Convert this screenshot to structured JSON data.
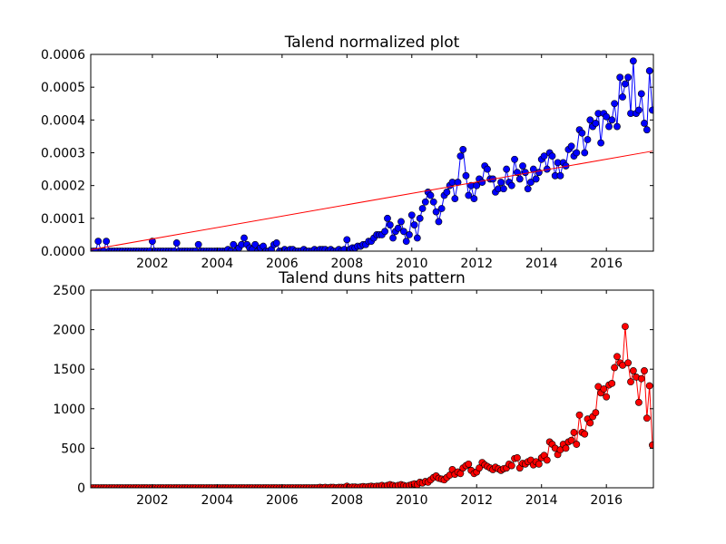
{
  "chart_data": [
    {
      "type": "line",
      "title": "Talend normalized plot",
      "xlim": [
        2000.1,
        2017.45
      ],
      "ylim": [
        0,
        0.0006
      ],
      "xticks": [
        2002,
        2004,
        2006,
        2008,
        2010,
        2012,
        2014,
        2016
      ],
      "yticks": [
        {
          "value": 0,
          "label": "0.0000"
        },
        {
          "value": 0.0001,
          "label": "0.0001"
        },
        {
          "value": 0.0002,
          "label": "0.0002"
        },
        {
          "value": 0.0003,
          "label": "0.0003"
        },
        {
          "value": 0.0004,
          "label": "0.0004"
        },
        {
          "value": 0.0005,
          "label": "0.0005"
        },
        {
          "value": 0.0006,
          "label": "0.0006"
        }
      ],
      "x": [
        2000.08,
        2000.17,
        2000.25,
        2000.33,
        2000.42,
        2000.5,
        2000.58,
        2000.67,
        2000.75,
        2000.83,
        2000.92,
        2001,
        2001.08,
        2001.17,
        2001.25,
        2001.33,
        2001.42,
        2001.5,
        2001.58,
        2001.67,
        2001.75,
        2001.83,
        2001.92,
        2002,
        2002.08,
        2002.17,
        2002.25,
        2002.33,
        2002.42,
        2002.5,
        2002.58,
        2002.67,
        2002.75,
        2002.83,
        2002.92,
        2003,
        2003.08,
        2003.17,
        2003.25,
        2003.33,
        2003.42,
        2003.5,
        2003.58,
        2003.67,
        2003.75,
        2003.83,
        2003.92,
        2004,
        2004.08,
        2004.17,
        2004.25,
        2004.33,
        2004.42,
        2004.5,
        2004.58,
        2004.67,
        2004.75,
        2004.83,
        2004.92,
        2005,
        2005.08,
        2005.17,
        2005.25,
        2005.33,
        2005.42,
        2005.5,
        2005.58,
        2005.67,
        2005.75,
        2005.83,
        2005.92,
        2006,
        2006.08,
        2006.17,
        2006.25,
        2006.33,
        2006.42,
        2006.5,
        2006.58,
        2006.67,
        2006.75,
        2006.83,
        2006.92,
        2007,
        2007.08,
        2007.17,
        2007.25,
        2007.33,
        2007.42,
        2007.5,
        2007.58,
        2007.67,
        2007.75,
        2007.83,
        2007.92,
        2008,
        2008.08,
        2008.17,
        2008.25,
        2008.33,
        2008.42,
        2008.5,
        2008.58,
        2008.67,
        2008.75,
        2008.83,
        2008.92,
        2009,
        2009.08,
        2009.17,
        2009.25,
        2009.33,
        2009.42,
        2009.5,
        2009.58,
        2009.67,
        2009.75,
        2009.83,
        2009.92,
        2010,
        2010.08,
        2010.17,
        2010.25,
        2010.33,
        2010.42,
        2010.5,
        2010.58,
        2010.67,
        2010.75,
        2010.83,
        2010.92,
        2011,
        2011.08,
        2011.17,
        2011.25,
        2011.33,
        2011.42,
        2011.5,
        2011.58,
        2011.67,
        2011.75,
        2011.83,
        2011.92,
        2012,
        2012.08,
        2012.17,
        2012.25,
        2012.33,
        2012.42,
        2012.5,
        2012.58,
        2012.67,
        2012.75,
        2012.83,
        2012.92,
        2013,
        2013.08,
        2013.17,
        2013.25,
        2013.33,
        2013.42,
        2013.5,
        2013.58,
        2013.67,
        2013.75,
        2013.83,
        2013.92,
        2014,
        2014.08,
        2014.17,
        2014.25,
        2014.33,
        2014.42,
        2014.5,
        2014.58,
        2014.67,
        2014.75,
        2014.83,
        2014.92,
        2015,
        2015.08,
        2015.17,
        2015.25,
        2015.33,
        2015.42,
        2015.5,
        2015.58,
        2015.67,
        2015.75,
        2015.83,
        2015.92,
        2016,
        2016.08,
        2016.17,
        2016.25,
        2016.33,
        2016.42,
        2016.5,
        2016.58,
        2016.67,
        2016.75,
        2016.83,
        2016.92,
        2017,
        2017.08,
        2017.17,
        2017.25,
        2017.33,
        2017.42
      ],
      "series": [
        {
          "color": "#0000ff",
          "markers": true,
          "values": [
            0,
            0,
            0,
            3e-05,
            0,
            0,
            3e-05,
            0,
            0,
            0,
            0,
            0,
            0,
            0,
            0,
            0,
            0,
            0,
            0,
            0,
            0,
            0,
            0,
            3e-05,
            0,
            0,
            0,
            0,
            0,
            0,
            0,
            0,
            2.5e-05,
            0,
            0,
            0,
            0,
            0,
            0,
            0,
            2e-05,
            0,
            0,
            0,
            0,
            0,
            0,
            0,
            0,
            0,
            0,
            5e-06,
            0,
            2e-05,
            0,
            1e-05,
            2e-05,
            4e-05,
            2e-05,
            1e-05,
            5e-06,
            2e-05,
            0,
            1e-05,
            1.5e-05,
            0,
            0,
            5e-06,
            2e-05,
            2.5e-05,
            0,
            0,
            5e-06,
            0,
            5e-06,
            5e-06,
            0,
            0,
            0,
            5e-06,
            0,
            0,
            0,
            5e-06,
            0,
            5e-06,
            5e-06,
            5e-06,
            0,
            5e-06,
            0,
            0,
            5e-06,
            0,
            5e-06,
            3.5e-05,
            5e-06,
            1e-05,
            1e-05,
            1.5e-05,
            1.5e-05,
            2e-05,
            2e-05,
            3e-05,
            3e-05,
            4e-05,
            5e-05,
            5e-05,
            5e-05,
            6e-05,
            0.0001,
            8e-05,
            4e-05,
            6e-05,
            7e-05,
            9e-05,
            6e-05,
            3e-05,
            5e-05,
            0.00011,
            8e-05,
            4e-05,
            0.0001,
            0.00013,
            0.00015,
            0.00018,
            0.00017,
            0.00015,
            0.00012,
            9e-05,
            0.00013,
            0.00017,
            0.00018,
            0.0002,
            0.00021,
            0.00016,
            0.00021,
            0.00029,
            0.00031,
            0.00023,
            0.00017,
            0.0002,
            0.00016,
            0.0002,
            0.00022,
            0.00021,
            0.00026,
            0.00025,
            0.00022,
            0.00022,
            0.00018,
            0.00019,
            0.00021,
            0.00019,
            0.00025,
            0.00021,
            0.0002,
            0.00028,
            0.00024,
            0.00022,
            0.00026,
            0.00024,
            0.00019,
            0.00021,
            0.00025,
            0.00022,
            0.00024,
            0.00028,
            0.00029,
            0.00025,
            0.0003,
            0.00029,
            0.00023,
            0.00027,
            0.00023,
            0.00027,
            0.00026,
            0.00031,
            0.00032,
            0.00029,
            0.0003,
            0.00037,
            0.00036,
            0.0003,
            0.00034,
            0.0004,
            0.00038,
            0.00039,
            0.00042,
            0.00033,
            0.00042,
            0.00041,
            0.00038,
            0.0004,
            0.00045,
            0.00038,
            0.00053,
            0.00047,
            0.00051,
            0.00053,
            0.00042,
            0.00058,
            0.00042,
            0.00043,
            0.00048,
            0.00039,
            0.00037,
            0.00055,
            0.00043
          ]
        },
        {
          "color": "#ff0000",
          "markers": false,
          "x": [
            2000.08,
            2017.42
          ],
          "values": [
            4e-06,
            0.000305
          ]
        }
      ]
    },
    {
      "type": "line",
      "title": "Talend duns hits pattern",
      "xlim": [
        2000.1,
        2017.45
      ],
      "ylim": [
        0,
        2500
      ],
      "xticks": [
        2002,
        2004,
        2006,
        2008,
        2010,
        2012,
        2014,
        2016
      ],
      "yticks": [
        0,
        500,
        1000,
        1500,
        2000,
        2500
      ],
      "x": [
        2000.08,
        2000.17,
        2000.25,
        2000.33,
        2000.42,
        2000.5,
        2000.58,
        2000.67,
        2000.75,
        2000.83,
        2000.92,
        2001,
        2001.08,
        2001.17,
        2001.25,
        2001.33,
        2001.42,
        2001.5,
        2001.58,
        2001.67,
        2001.75,
        2001.83,
        2001.92,
        2002,
        2002.08,
        2002.17,
        2002.25,
        2002.33,
        2002.42,
        2002.5,
        2002.58,
        2002.67,
        2002.75,
        2002.83,
        2002.92,
        2003,
        2003.08,
        2003.17,
        2003.25,
        2003.33,
        2003.42,
        2003.5,
        2003.58,
        2003.67,
        2003.75,
        2003.83,
        2003.92,
        2004,
        2004.08,
        2004.17,
        2004.25,
        2004.33,
        2004.42,
        2004.5,
        2004.58,
        2004.67,
        2004.75,
        2004.83,
        2004.92,
        2005,
        2005.08,
        2005.17,
        2005.25,
        2005.33,
        2005.42,
        2005.5,
        2005.58,
        2005.67,
        2005.75,
        2005.83,
        2005.92,
        2006,
        2006.08,
        2006.17,
        2006.25,
        2006.33,
        2006.42,
        2006.5,
        2006.58,
        2006.67,
        2006.75,
        2006.83,
        2006.92,
        2007,
        2007.08,
        2007.17,
        2007.25,
        2007.33,
        2007.42,
        2007.5,
        2007.58,
        2007.67,
        2007.75,
        2007.83,
        2007.92,
        2008,
        2008.08,
        2008.17,
        2008.25,
        2008.33,
        2008.42,
        2008.5,
        2008.58,
        2008.67,
        2008.75,
        2008.83,
        2008.92,
        2009,
        2009.08,
        2009.17,
        2009.25,
        2009.33,
        2009.42,
        2009.5,
        2009.58,
        2009.67,
        2009.75,
        2009.83,
        2009.92,
        2010,
        2010.08,
        2010.17,
        2010.25,
        2010.33,
        2010.42,
        2010.5,
        2010.58,
        2010.67,
        2010.75,
        2010.83,
        2010.92,
        2011,
        2011.08,
        2011.17,
        2011.25,
        2011.33,
        2011.42,
        2011.5,
        2011.58,
        2011.67,
        2011.75,
        2011.83,
        2011.92,
        2012,
        2012.08,
        2012.17,
        2012.25,
        2012.33,
        2012.42,
        2012.5,
        2012.58,
        2012.67,
        2012.75,
        2012.83,
        2012.92,
        2013,
        2013.08,
        2013.17,
        2013.25,
        2013.33,
        2013.42,
        2013.5,
        2013.58,
        2013.67,
        2013.75,
        2013.83,
        2013.92,
        2014,
        2014.08,
        2014.17,
        2014.25,
        2014.33,
        2014.42,
        2014.5,
        2014.58,
        2014.67,
        2014.75,
        2014.83,
        2014.92,
        2015,
        2015.08,
        2015.17,
        2015.25,
        2015.33,
        2015.42,
        2015.5,
        2015.58,
        2015.67,
        2015.75,
        2015.83,
        2015.92,
        2016,
        2016.08,
        2016.17,
        2016.25,
        2016.33,
        2016.42,
        2016.5,
        2016.58,
        2016.67,
        2016.75,
        2016.83,
        2016.92,
        2017,
        2017.08,
        2017.17,
        2017.25,
        2017.33,
        2017.42
      ],
      "series": [
        {
          "color": "#ff0000",
          "markers": true,
          "values": [
            0,
            0,
            0,
            0,
            0,
            0,
            0,
            0,
            0,
            0,
            0,
            0,
            0,
            0,
            0,
            0,
            0,
            0,
            0,
            0,
            0,
            0,
            0,
            0,
            0,
            0,
            0,
            0,
            0,
            0,
            0,
            0,
            0,
            0,
            0,
            0,
            0,
            0,
            0,
            0,
            0,
            0,
            0,
            0,
            0,
            0,
            0,
            0,
            0,
            0,
            0,
            0,
            0,
            0,
            0,
            0,
            0,
            0,
            0,
            0,
            0,
            0,
            0,
            0,
            0,
            0,
            0,
            0,
            0,
            0,
            0,
            0,
            0,
            0,
            0,
            0,
            0,
            0,
            0,
            0,
            0,
            0,
            0,
            0,
            0,
            5,
            0,
            5,
            0,
            5,
            5,
            0,
            5,
            5,
            5,
            20,
            5,
            10,
            10,
            5,
            10,
            15,
            10,
            15,
            20,
            15,
            20,
            20,
            30,
            20,
            30,
            40,
            30,
            20,
            30,
            40,
            30,
            20,
            30,
            40,
            50,
            40,
            70,
            60,
            80,
            70,
            100,
            130,
            150,
            120,
            110,
            100,
            130,
            160,
            230,
            170,
            200,
            180,
            250,
            280,
            300,
            220,
            180,
            200,
            250,
            320,
            290,
            270,
            250,
            230,
            260,
            240,
            220,
            240,
            250,
            300,
            280,
            370,
            380,
            250,
            310,
            300,
            330,
            350,
            290,
            330,
            300,
            380,
            410,
            350,
            580,
            550,
            500,
            420,
            480,
            550,
            500,
            580,
            600,
            700,
            550,
            920,
            700,
            680,
            870,
            820,
            900,
            950,
            1280,
            1200,
            1250,
            1150,
            1300,
            1320,
            1520,
            1660,
            1580,
            1550,
            2040,
            1580,
            1340,
            1480,
            1400,
            1080,
            1380,
            1480,
            880,
            1290,
            540
          ]
        }
      ]
    }
  ]
}
